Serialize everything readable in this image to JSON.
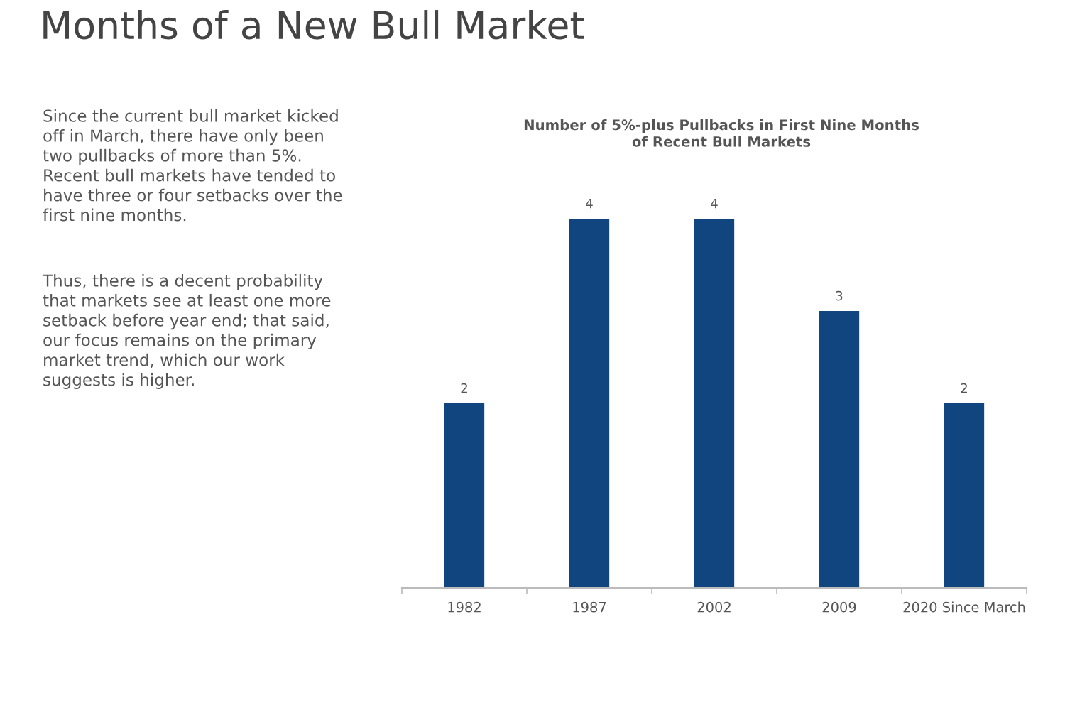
{
  "chart_data": {
    "type": "bar",
    "title": "Months of a New Bull Market",
    "subtitle": "Number of 5%-plus Pullbacks in First Nine Months\nof Recent Bull Markets",
    "annotations": [
      "Since the current bull market kicked\noff in March, there have only been\ntwo pullbacks of more than 5%.\nRecent bull markets have tended to\nhave three or four setbacks over the\nfirst nine months.",
      "Thus, there is a decent probability\nthat markets see at least one more\nsetback before year end; that said,\nour focus remains on the primary\nmarket trend, which our work\nsuggests is higher."
    ],
    "categories": [
      "1982",
      "1987",
      "2002",
      "2009",
      "2020 Since March"
    ],
    "values": [
      2,
      4,
      4,
      3,
      2
    ],
    "color": "#10457f",
    "data_labels": true
  }
}
